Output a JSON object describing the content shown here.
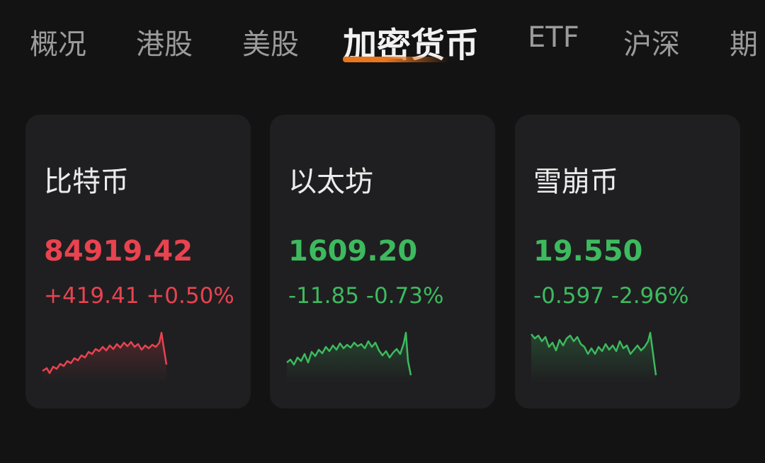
{
  "tabs": [
    "概况",
    "港股",
    "美股",
    "加密货币",
    "ETF",
    "沪深",
    "期"
  ],
  "cards": [
    {
      "name": "比特币",
      "price": "84919.42",
      "change": "+419.41",
      "change_pct": "+0.50%"
    },
    {
      "name": "以太坊",
      "price": "1609.20",
      "change": "-11.85",
      "change_pct": "-0.73%"
    },
    {
      "name": "雪崩币",
      "price": "19.550",
      "change": "-0.597",
      "change_pct": "-2.96%"
    }
  ]
}
